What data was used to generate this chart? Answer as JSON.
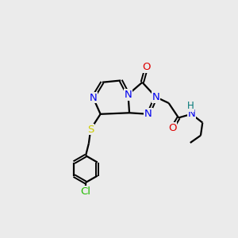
{
  "background_color": "#ebebeb",
  "colors": {
    "N": "#0000ee",
    "O": "#dd0000",
    "S": "#cccc00",
    "Cl": "#22bb00",
    "H": "#007777",
    "C": "#000000",
    "bond": "#000000"
  },
  "atoms": {
    "note": "All coordinates in 300x300 pixel space, y increases downward"
  }
}
